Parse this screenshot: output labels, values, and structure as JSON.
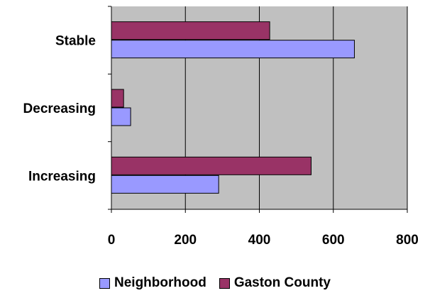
{
  "chart_data": {
    "type": "bar",
    "orientation": "horizontal",
    "categories": [
      "Increasing",
      "Decreasing",
      "Stable"
    ],
    "series": [
      {
        "name": "Neighborhood",
        "values": [
          290,
          52,
          657
        ],
        "color": "#9999ff"
      },
      {
        "name": "Gaston County",
        "values": [
          540,
          33,
          428
        ],
        "color": "#993366"
      }
    ],
    "xlim": [
      0,
      800
    ],
    "xticks": [
      "0",
      "200",
      "400",
      "600",
      "800"
    ],
    "plot_background": "#c0c0c0",
    "grid": true,
    "legend_position": "bottom"
  }
}
